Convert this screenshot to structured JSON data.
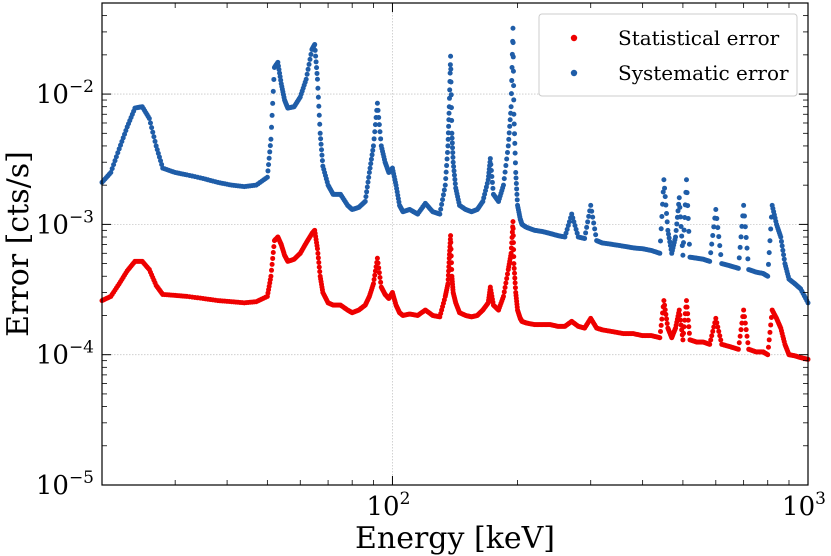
{
  "chart_data": {
    "type": "scatter",
    "title": "",
    "xlabel": "Energy [keV]",
    "ylabel": "Error [cts/s]",
    "x_scale": "log",
    "y_scale": "log",
    "xlim": [
      20,
      1000
    ],
    "ylim": [
      1e-05,
      0.05
    ],
    "grid": true,
    "legend_position": "top-right",
    "x_ticks": [
      {
        "value": 100,
        "label": "10",
        "exp": "2"
      },
      {
        "value": 1000,
        "label": "10",
        "exp": "3"
      }
    ],
    "y_ticks": [
      {
        "value": 1e-05,
        "label": "10",
        "exp": "−5"
      },
      {
        "value": 0.0001,
        "label": "10",
        "exp": "−4"
      },
      {
        "value": 0.001,
        "label": "10",
        "exp": "−3"
      },
      {
        "value": 0.01,
        "label": "10",
        "exp": "−2"
      }
    ],
    "series": [
      {
        "name": "Statistical error",
        "color": "#ee0000",
        "x": [
          20,
          21,
          22,
          23,
          24,
          25,
          26,
          27,
          28,
          30,
          32,
          35,
          38,
          41,
          44,
          47,
          50,
          51,
          52,
          53,
          54,
          55,
          56,
          58,
          60,
          62,
          64,
          65,
          66,
          67,
          68,
          70,
          72,
          75,
          78,
          80,
          83,
          86,
          88,
          90,
          92,
          94,
          96,
          98,
          100,
          102,
          104,
          106,
          110,
          115,
          120,
          125,
          130,
          134,
          136,
          137,
          138,
          139,
          140,
          142,
          145,
          150,
          155,
          160,
          165,
          170,
          172,
          175,
          180,
          185,
          190,
          193,
          195,
          196,
          198,
          200,
          203,
          205,
          210,
          220,
          230,
          240,
          250,
          260,
          270,
          280,
          290,
          300,
          310,
          320,
          340,
          360,
          380,
          400,
          420,
          440,
          450,
          460,
          470,
          480,
          490,
          500,
          510,
          520,
          540,
          560,
          580,
          600,
          620,
          650,
          680,
          700,
          720,
          750,
          780,
          800,
          820,
          840,
          860,
          880,
          900,
          930,
          960,
          1000
        ],
        "y": [
          0.00026,
          0.00028,
          0.00035,
          0.00044,
          0.00052,
          0.00052,
          0.00045,
          0.00034,
          0.00029,
          0.000285,
          0.00028,
          0.00027,
          0.00026,
          0.000255,
          0.00025,
          0.000255,
          0.00028,
          0.0004,
          0.00075,
          0.0008,
          0.0007,
          0.00058,
          0.00052,
          0.00054,
          0.0006,
          0.00072,
          0.00085,
          0.0009,
          0.00065,
          0.0004,
          0.0003,
          0.00025,
          0.00024,
          0.00024,
          0.00022,
          0.00021,
          0.00022,
          0.00024,
          0.00028,
          0.00035,
          0.00055,
          0.00033,
          0.00029,
          0.00027,
          0.0003,
          0.00024,
          0.00021,
          0.0002,
          0.000205,
          0.0002,
          0.00022,
          0.0002,
          0.000195,
          0.00028,
          0.00035,
          0.00055,
          0.00082,
          0.0004,
          0.0003,
          0.00025,
          0.00021,
          0.0002,
          0.000195,
          0.0002,
          0.00022,
          0.00025,
          0.00033,
          0.00024,
          0.00022,
          0.00028,
          0.00045,
          0.0006,
          0.00105,
          0.0005,
          0.0003,
          0.00022,
          0.00019,
          0.00018,
          0.000175,
          0.00017,
          0.00017,
          0.00017,
          0.000165,
          0.000165,
          0.00018,
          0.000165,
          0.00016,
          0.00019,
          0.00016,
          0.000155,
          0.00015,
          0.000145,
          0.000145,
          0.00014,
          0.00014,
          0.000135,
          0.00026,
          0.00016,
          0.000135,
          0.00016,
          0.00022,
          0.00013,
          0.00026,
          0.00013,
          0.000125,
          0.000125,
          0.00012,
          0.00019,
          0.00012,
          0.000115,
          0.00011,
          0.00022,
          0.00011,
          0.000105,
          0.000105,
          0.0001,
          0.00022,
          0.00019,
          0.00016,
          0.00012,
          0.0001,
          9.8e-05,
          9.5e-05,
          9.2e-05
        ]
      },
      {
        "name": "Systematic error",
        "color": "#1f5da8",
        "x": [
          20,
          21,
          22,
          23,
          24,
          25,
          26,
          27,
          28,
          30,
          32,
          35,
          38,
          41,
          44,
          47,
          50,
          51,
          52,
          53,
          54,
          55,
          56,
          58,
          60,
          62,
          64,
          65,
          66,
          67,
          68,
          70,
          72,
          75,
          78,
          80,
          83,
          86,
          88,
          90,
          92,
          94,
          96,
          98,
          100,
          102,
          104,
          106,
          110,
          115,
          120,
          125,
          130,
          134,
          136,
          137,
          138,
          139,
          140,
          142,
          145,
          150,
          155,
          160,
          165,
          170,
          172,
          175,
          180,
          185,
          190,
          193,
          195,
          196,
          198,
          200,
          203,
          205,
          210,
          220,
          230,
          240,
          250,
          260,
          270,
          280,
          290,
          300,
          310,
          320,
          340,
          360,
          380,
          400,
          420,
          440,
          450,
          460,
          470,
          480,
          490,
          500,
          510,
          520,
          540,
          560,
          580,
          600,
          620,
          650,
          680,
          700,
          720,
          750,
          780,
          800,
          820,
          840,
          860,
          880,
          900,
          930,
          960,
          1000
        ],
        "y": [
          0.0021,
          0.0025,
          0.0038,
          0.0056,
          0.0078,
          0.008,
          0.0065,
          0.004,
          0.0027,
          0.0025,
          0.0024,
          0.00225,
          0.0021,
          0.002,
          0.00195,
          0.002,
          0.0023,
          0.0045,
          0.016,
          0.0175,
          0.012,
          0.009,
          0.0078,
          0.008,
          0.0095,
          0.013,
          0.022,
          0.024,
          0.013,
          0.005,
          0.0028,
          0.002,
          0.0017,
          0.0017,
          0.0014,
          0.0013,
          0.00135,
          0.0015,
          0.0025,
          0.004,
          0.0085,
          0.004,
          0.003,
          0.0025,
          0.0027,
          0.002,
          0.0014,
          0.00125,
          0.0013,
          0.0012,
          0.00145,
          0.00125,
          0.0012,
          0.002,
          0.004,
          0.008,
          0.0195,
          0.005,
          0.003,
          0.0019,
          0.0014,
          0.0013,
          0.00125,
          0.0013,
          0.0015,
          0.0022,
          0.0032,
          0.0017,
          0.0015,
          0.002,
          0.004,
          0.008,
          0.032,
          0.007,
          0.0025,
          0.0014,
          0.0011,
          0.001,
          0.00095,
          0.0009,
          0.00088,
          0.00085,
          0.00082,
          0.0008,
          0.0012,
          0.0008,
          0.00078,
          0.0014,
          0.00075,
          0.00072,
          0.0007,
          0.00068,
          0.00066,
          0.00065,
          0.00063,
          0.0006,
          0.0022,
          0.0009,
          0.0006,
          0.0008,
          0.0016,
          0.00058,
          0.0022,
          0.00056,
          0.00055,
          0.00054,
          0.00052,
          0.0013,
          0.0005,
          0.00048,
          0.00046,
          0.0014,
          0.00045,
          0.00043,
          0.00042,
          0.0004,
          0.0014,
          0.001,
          0.0008,
          0.0005,
          0.00038,
          0.00035,
          0.00032,
          0.00025
        ]
      }
    ]
  }
}
